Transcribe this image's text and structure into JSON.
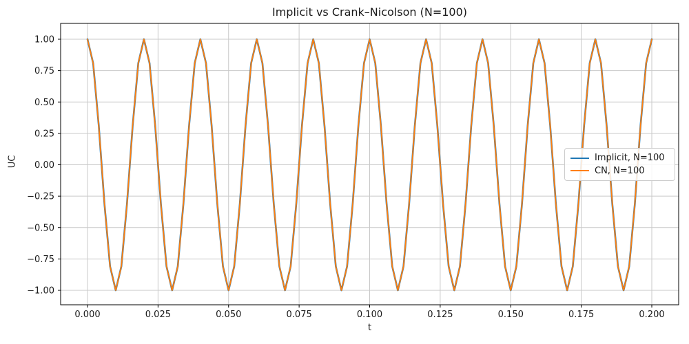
{
  "chart_data": {
    "type": "line",
    "title": "Implicit vs Crank–Nicolson (N=100)",
    "xlabel": "t",
    "ylabel": "UC",
    "xlim": [
      0,
      0.2
    ],
    "ylim": [
      -1,
      1
    ],
    "grid": true,
    "legend_position": "center right",
    "grid_color": "#c9c9c9",
    "spine_color": "#000000",
    "text_color": "#1a1a1a",
    "xtick_values": [
      0.0,
      0.025,
      0.05,
      0.075,
      0.1,
      0.125,
      0.15,
      0.175,
      0.2
    ],
    "xtick_labels": [
      "0.000",
      "0.025",
      "0.050",
      "0.075",
      "0.100",
      "0.125",
      "0.150",
      "0.175",
      "0.200"
    ],
    "ytick_values": [
      1.0,
      0.75,
      0.5,
      0.25,
      0.0,
      -0.25,
      -0.5,
      -0.75,
      -1.0
    ],
    "ytick_labels": [
      "1.00",
      "0.75",
      "0.50",
      "0.25",
      "0.00",
      "−0.25",
      "−0.50",
      "−0.75",
      "−1.00"
    ],
    "x": [
      0,
      0.002,
      0.004,
      0.006,
      0.008,
      0.01,
      0.012,
      0.014,
      0.016,
      0.018,
      0.02,
      0.022,
      0.024,
      0.026,
      0.028,
      0.03,
      0.032,
      0.034,
      0.036,
      0.038,
      0.04,
      0.042,
      0.044,
      0.046,
      0.048,
      0.05,
      0.052,
      0.054,
      0.056,
      0.058,
      0.06,
      0.062,
      0.064,
      0.066,
      0.068,
      0.07,
      0.072,
      0.074,
      0.076,
      0.078,
      0.08,
      0.082,
      0.084,
      0.086,
      0.088,
      0.09,
      0.092,
      0.094,
      0.096,
      0.098,
      0.1,
      0.102,
      0.104,
      0.106,
      0.108,
      0.11,
      0.112,
      0.114,
      0.116,
      0.118,
      0.12,
      0.122,
      0.124,
      0.126,
      0.128,
      0.13,
      0.132,
      0.134,
      0.136,
      0.138,
      0.14,
      0.142,
      0.144,
      0.146,
      0.148,
      0.15,
      0.152,
      0.154,
      0.156,
      0.158,
      0.16,
      0.162,
      0.164,
      0.166,
      0.168,
      0.17,
      0.172,
      0.174,
      0.176,
      0.178,
      0.18,
      0.182,
      0.184,
      0.186,
      0.188,
      0.19,
      0.192,
      0.194,
      0.196,
      0.198,
      0.2
    ],
    "series": [
      {
        "name": "Implicit, N=100",
        "color": "#1f77b4",
        "values": [
          1,
          0.809,
          0.309,
          -0.309,
          -0.809,
          -1,
          -0.809,
          -0.309,
          0.309,
          0.809,
          1,
          0.809,
          0.309,
          -0.309,
          -0.809,
          -1,
          -0.809,
          -0.309,
          0.309,
          0.809,
          1,
          0.809,
          0.309,
          -0.309,
          -0.809,
          -1,
          -0.809,
          -0.309,
          0.309,
          0.809,
          1,
          0.809,
          0.309,
          -0.309,
          -0.809,
          -1,
          -0.809,
          -0.309,
          0.309,
          0.809,
          1,
          0.809,
          0.309,
          -0.309,
          -0.809,
          -1,
          -0.809,
          -0.309,
          0.309,
          0.809,
          1,
          0.809,
          0.309,
          -0.309,
          -0.809,
          -1,
          -0.809,
          -0.309,
          0.309,
          0.809,
          1,
          0.809,
          0.309,
          -0.309,
          -0.809,
          -1,
          -0.809,
          -0.309,
          0.309,
          0.809,
          1,
          0.809,
          0.309,
          -0.309,
          -0.809,
          -1,
          -0.809,
          -0.309,
          0.309,
          0.809,
          1,
          0.809,
          0.309,
          -0.309,
          -0.809,
          -1,
          -0.809,
          -0.309,
          0.309,
          0.809,
          1,
          0.809,
          0.309,
          -0.309,
          -0.809,
          -1,
          -0.809,
          -0.309,
          0.309,
          0.809,
          1
        ]
      },
      {
        "name": "CN, N=100",
        "color": "#ff7f0e",
        "values": [
          1,
          0.809,
          0.309,
          -0.309,
          -0.809,
          -1,
          -0.809,
          -0.309,
          0.309,
          0.809,
          1,
          0.809,
          0.309,
          -0.309,
          -0.809,
          -1,
          -0.809,
          -0.309,
          0.309,
          0.809,
          1,
          0.809,
          0.309,
          -0.309,
          -0.809,
          -1,
          -0.809,
          -0.309,
          0.309,
          0.809,
          1,
          0.809,
          0.309,
          -0.309,
          -0.809,
          -1,
          -0.809,
          -0.309,
          0.309,
          0.809,
          1,
          0.809,
          0.309,
          -0.309,
          -0.809,
          -1,
          -0.809,
          -0.309,
          0.309,
          0.809,
          1,
          0.809,
          0.309,
          -0.309,
          -0.809,
          -1,
          -0.809,
          -0.309,
          0.309,
          0.809,
          1,
          0.809,
          0.309,
          -0.309,
          -0.809,
          -1,
          -0.809,
          -0.309,
          0.309,
          0.809,
          1,
          0.809,
          0.309,
          -0.309,
          -0.809,
          -1,
          -0.809,
          -0.309,
          0.309,
          0.809,
          1,
          0.809,
          0.309,
          -0.309,
          -0.809,
          -1,
          -0.809,
          -0.309,
          0.309,
          0.809,
          1,
          0.809,
          0.309,
          -0.309,
          -0.809,
          -1,
          -0.809,
          -0.309,
          0.309,
          0.809,
          1
        ]
      }
    ]
  }
}
